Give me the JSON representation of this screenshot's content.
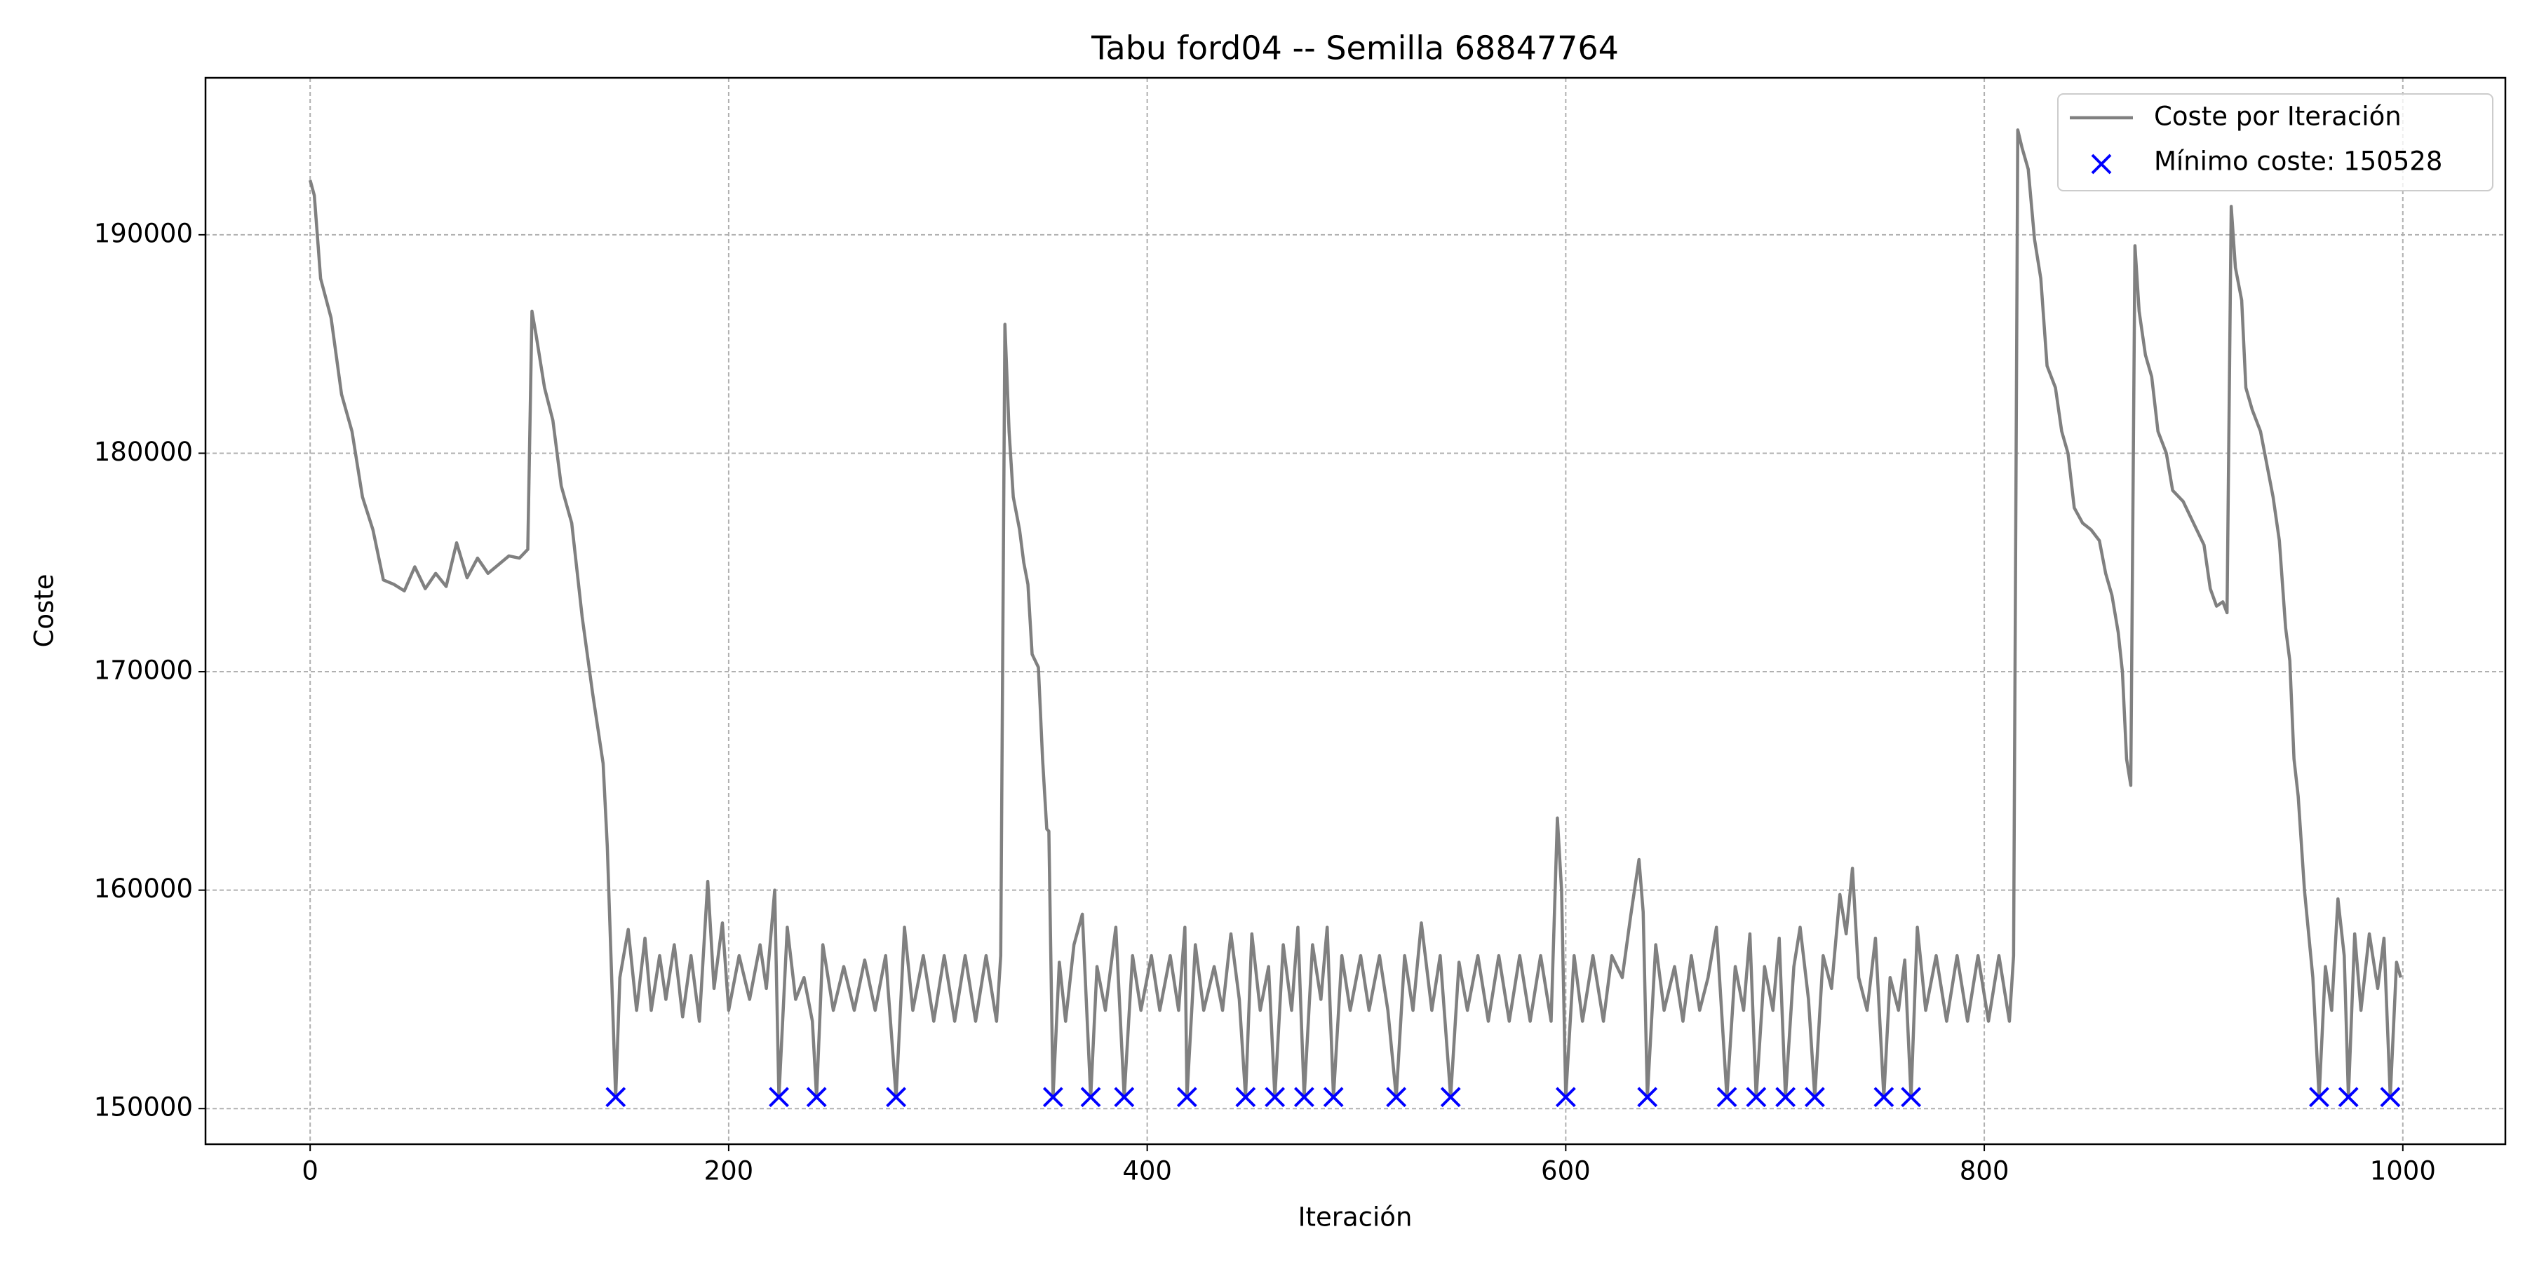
{
  "chart_data": {
    "type": "line",
    "title": "Tabu ford04 -- Semilla 68847764",
    "xlabel": "Iteración",
    "ylabel": "Coste",
    "xlim": [
      -50,
      1049
    ],
    "ylim": [
      148370,
      197185
    ],
    "xticks": [
      0,
      200,
      400,
      600,
      800,
      1000
    ],
    "yticks": [
      150000,
      160000,
      170000,
      180000,
      190000
    ],
    "grid": true,
    "legend": "upper right",
    "series": [
      {
        "name": "Coste por Iteración",
        "color": "#808080",
        "type": "line",
        "x": [
          0,
          2,
          5,
          10,
          15,
          20,
          25,
          30,
          35,
          40,
          45,
          50,
          55,
          60,
          65,
          70,
          75,
          80,
          85,
          90,
          95,
          100,
          104,
          106,
          108,
          112,
          116,
          120,
          125,
          130,
          135,
          140,
          142,
          146,
          148,
          152,
          156,
          160,
          163,
          167,
          170,
          174,
          178,
          182,
          186,
          190,
          193,
          197,
          200,
          205,
          210,
          215,
          218,
          222,
          224,
          228,
          232,
          236,
          240,
          242,
          245,
          250,
          255,
          260,
          265,
          270,
          275,
          280,
          284,
          288,
          293,
          298,
          303,
          308,
          313,
          318,
          323,
          328,
          330,
          332,
          334,
          336,
          339,
          341,
          343,
          345,
          348,
          350,
          352,
          353,
          355,
          358,
          361,
          365,
          369,
          373,
          376,
          380,
          385,
          389,
          393,
          397,
          402,
          406,
          411,
          415,
          418,
          419,
          423,
          427,
          432,
          436,
          440,
          444,
          447,
          450,
          454,
          458,
          461,
          465,
          469,
          472,
          475,
          479,
          483,
          486,
          489,
          493,
          497,
          502,
          506,
          511,
          515,
          519,
          523,
          527,
          531,
          536,
          540,
          545,
          549,
          553,
          558,
          563,
          568,
          573,
          578,
          583,
          588,
          593,
          596,
          598,
          600,
          604,
          608,
          613,
          618,
          622,
          627,
          631,
          635,
          637,
          639,
          643,
          647,
          652,
          656,
          660,
          664,
          668,
          672,
          677,
          681,
          685,
          688,
          691,
          695,
          699,
          702,
          705,
          709,
          712,
          716,
          719,
          723,
          727,
          731,
          734,
          737,
          740,
          744,
          748,
          752,
          755,
          759,
          762,
          765,
          768,
          772,
          777,
          782,
          787,
          792,
          797,
          802,
          807,
          812,
          814,
          816,
          818,
          821,
          824,
          827,
          830,
          834,
          837,
          840,
          843,
          847,
          851,
          855,
          858,
          861,
          864,
          866,
          868,
          870,
          872,
          874,
          877,
          880,
          883,
          887,
          890,
          895,
          900,
          905,
          908,
          911,
          914,
          916,
          918,
          920,
          923,
          925,
          928,
          932,
          935,
          938,
          941,
          944,
          946,
          948,
          950,
          953,
          957,
          960,
          963,
          966,
          969,
          972,
          974,
          977,
          980,
          984,
          988,
          991,
          994,
          997,
          999
        ],
        "values": [
          192500,
          191800,
          188000,
          186200,
          182700,
          181000,
          178000,
          176500,
          174200,
          174000,
          173700,
          174800,
          173800,
          174500,
          173900,
          175900,
          174300,
          175200,
          174500,
          174900,
          175300,
          175200,
          175600,
          186500,
          185400,
          183000,
          181500,
          178500,
          176800,
          172500,
          169000,
          165800,
          162000,
          150528,
          156000,
          158200,
          154500,
          157800,
          154500,
          157000,
          155000,
          157500,
          154200,
          157000,
          154000,
          160400,
          155500,
          158500,
          154500,
          157000,
          155000,
          157500,
          155500,
          160000,
          150528,
          158300,
          155000,
          156000,
          154000,
          150528,
          157500,
          154500,
          156500,
          154500,
          156800,
          154500,
          157000,
          150528,
          158300,
          154500,
          157000,
          154000,
          157000,
          154000,
          157000,
          154000,
          157000,
          154000,
          157000,
          185900,
          181000,
          178000,
          176500,
          175000,
          174000,
          170800,
          170200,
          166000,
          162800,
          162700,
          150528,
          156700,
          154000,
          157500,
          158900,
          150528,
          156500,
          154500,
          158300,
          150528,
          157000,
          154500,
          157000,
          154500,
          157000,
          154500,
          158300,
          150528,
          157500,
          154500,
          156500,
          154500,
          158000,
          155000,
          150528,
          158000,
          154500,
          156500,
          150528,
          157500,
          154500,
          158300,
          150528,
          157500,
          155000,
          158300,
          150528,
          157000,
          154500,
          157000,
          154500,
          157000,
          154500,
          150528,
          157000,
          154500,
          158500,
          154500,
          157000,
          150528,
          156700,
          154500,
          157000,
          154000,
          157000,
          154000,
          157000,
          154000,
          157000,
          154000,
          163300,
          160000,
          150528,
          157000,
          154000,
          157000,
          154000,
          157000,
          156000,
          158800,
          161400,
          159000,
          150528,
          157500,
          154500,
          156500,
          154000,
          157000,
          154500,
          156000,
          158300,
          150528,
          156500,
          154500,
          158000,
          150528,
          156500,
          154500,
          157800,
          150528,
          156500,
          158300,
          155000,
          150528,
          157000,
          155500,
          159800,
          158000,
          161000,
          156000,
          154500,
          157800,
          150528,
          156000,
          154500,
          156800,
          150528,
          158300,
          154500,
          157000,
          154000,
          157000,
          154000,
          157000,
          154000,
          157000,
          154000,
          157000,
          194800,
          194000,
          193000,
          189800,
          188000,
          184000,
          183000,
          181000,
          180000,
          177500,
          176800,
          176500,
          176000,
          174500,
          173500,
          171800,
          170000,
          166000,
          164800,
          189500,
          186500,
          184500,
          183500,
          181000,
          180000,
          178300,
          177800,
          176800,
          175800,
          173800,
          173000,
          173200,
          172700,
          191300,
          188500,
          187000,
          183000,
          182000,
          181000,
          179500,
          178000,
          176000,
          172000,
          170500,
          166000,
          164300,
          160000,
          156000,
          150528,
          156500,
          154500,
          159600,
          157000,
          150528,
          158000,
          154500,
          158000,
          155500,
          157800,
          150528,
          156700,
          156000
        ]
      },
      {
        "name": "Mínimo coste: 150528",
        "color": "#0000ff",
        "type": "scatter",
        "x": [
          146,
          224,
          242,
          280,
          355,
          373,
          389,
          419,
          447,
          461,
          475,
          489,
          519,
          545,
          600,
          639,
          677,
          691,
          705,
          719,
          752,
          765,
          960,
          974,
          994
        ],
        "values": [
          150528,
          150528,
          150528,
          150528,
          150528,
          150528,
          150528,
          150528,
          150528,
          150528,
          150528,
          150528,
          150528,
          150528,
          150528,
          150528,
          150528,
          150528,
          150528,
          150528,
          150528,
          150528,
          150528,
          150528,
          150528
        ]
      }
    ]
  }
}
